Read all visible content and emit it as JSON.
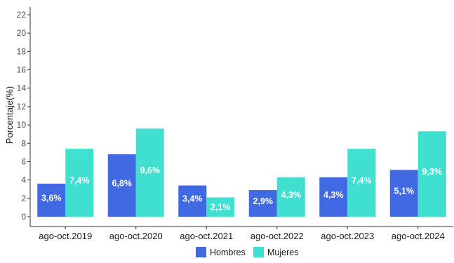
{
  "chart_data": {
    "type": "bar",
    "title": "",
    "xlabel": "",
    "ylabel": "Porcentaje(%)",
    "ylim": [
      0,
      22
    ],
    "yticks": [
      0,
      2,
      4,
      6,
      8,
      10,
      12,
      14,
      16,
      18,
      20,
      22
    ],
    "categories": [
      "ago-oct.2019",
      "ago-oct.2020",
      "ago-oct.2021",
      "ago-oct.2022",
      "ago-oct.2023",
      "ago-oct.2024"
    ],
    "series": [
      {
        "name": "Hombres",
        "color": "#4169E1",
        "values": [
          3.6,
          6.8,
          3.4,
          2.9,
          4.3,
          5.1
        ],
        "labels": [
          "3,6%",
          "6,8%",
          "3,4%",
          "2,9%",
          "4,3%",
          "5,1%"
        ]
      },
      {
        "name": "Mujeres",
        "color": "#40E0D0",
        "values": [
          7.4,
          9.6,
          2.1,
          4.3,
          7.4,
          9.3
        ],
        "labels": [
          "7,4%",
          "9,6%",
          "2,1%",
          "4,3%",
          "7,4%",
          "9,3%"
        ]
      }
    ],
    "grid": false,
    "legend_position": "bottom"
  }
}
